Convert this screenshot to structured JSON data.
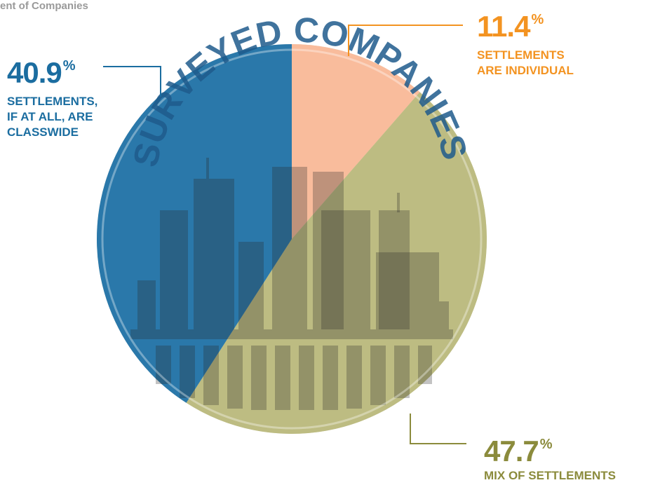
{
  "title": "ent of Companies",
  "chart_data": {
    "type": "pie",
    "center_text": "SURVEYED COMPANIES",
    "unit": "%",
    "categories": [
      "SETTLEMENTS\nARE INDIVIDUAL",
      "MIX OF SETTLEMENTS",
      "SETTLEMENTS,\nIF AT ALL, ARE\nCLASSWIDE"
    ],
    "values": [
      11.4,
      47.7,
      40.9
    ],
    "colors": [
      "#f9bc9c",
      "#bdbc82",
      "#2a78aa"
    ],
    "label_colors": [
      "#f39321",
      "#8b8b3c",
      "#1b6da0"
    ]
  }
}
